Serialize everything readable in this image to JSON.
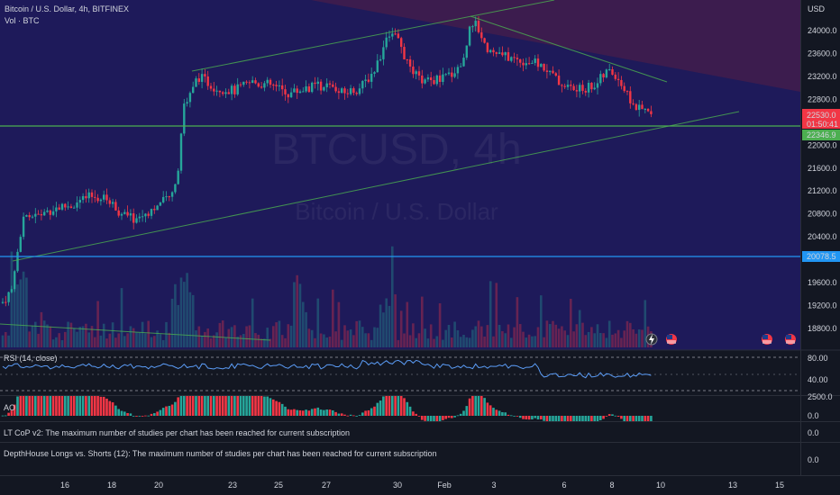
{
  "header": {
    "symbol_line": "Bitcoin / U.S. Dollar, 4h, BITFINEX",
    "vol_line": "Vol · BTC"
  },
  "watermark": {
    "ticker": "BTCUSD, 4h",
    "name": "Bitcoin / U.S. Dollar"
  },
  "price_axis": {
    "currency": "USD",
    "ticks": [
      "24000.0",
      "23600.0",
      "23200.0",
      "22800.0",
      "22000.0",
      "21600.0",
      "21200.0",
      "20800.0",
      "20400.0",
      "19600.0",
      "19200.0",
      "18800.0"
    ]
  },
  "price_tags": {
    "current_price": "22530.0",
    "countdown": "01:50:41",
    "level_upper": "22346.9",
    "level_lower": "20078.5",
    "current_color": "#f23645",
    "level_upper_color": "#4caf50",
    "level_lower_color": "#2196f3"
  },
  "indicators": {
    "rsi": {
      "label": "RSI (14, close)",
      "ticks": [
        "80.00",
        "40.00"
      ]
    },
    "ao": {
      "label": "AO",
      "ticks": [
        "2500.0",
        "0.0"
      ]
    },
    "lt_cop": {
      "label": "LT CoP v2: The maximum number of studies per chart has been reached for current subscription",
      "tick": "0.0"
    },
    "depthhouse": {
      "label": "DepthHouse Longs vs. Shorts (12): The maximum number of studies per chart has been reached for current subscription",
      "tick": "0.0"
    }
  },
  "time_axis": [
    "16",
    "18",
    "20",
    "23",
    "25",
    "27",
    "30",
    "Feb",
    "3",
    "6",
    "8",
    "10",
    "13",
    "15"
  ],
  "chart_data": {
    "type": "candlestick",
    "symbol": "BTCUSD",
    "interval": "4h",
    "exchange": "BITFINEX",
    "ylim": [
      18600,
      24400
    ],
    "levels": [
      22346.9,
      20078.5
    ],
    "last_price": 22530.0,
    "colors": {
      "up": "#26a69a",
      "down": "#f23645"
    },
    "path": [
      [
        0,
        19200
      ],
      [
        14,
        19500
      ],
      [
        20,
        20100
      ],
      [
        26,
        20800
      ],
      [
        40,
        20750
      ],
      [
        60,
        20900
      ],
      [
        80,
        20950
      ],
      [
        100,
        21100
      ],
      [
        120,
        21050
      ],
      [
        135,
        20800
      ],
      [
        150,
        20700
      ],
      [
        170,
        20900
      ],
      [
        190,
        21100
      ],
      [
        197,
        21500
      ],
      [
        203,
        22600
      ],
      [
        210,
        22900
      ],
      [
        220,
        23200
      ],
      [
        240,
        23000
      ],
      [
        260,
        22950
      ],
      [
        280,
        23100
      ],
      [
        300,
        23050
      ],
      [
        320,
        22900
      ],
      [
        340,
        23000
      ],
      [
        360,
        23050
      ],
      [
        380,
        22900
      ],
      [
        400,
        23000
      ],
      [
        415,
        23300
      ],
      [
        425,
        23700
      ],
      [
        435,
        24000
      ],
      [
        445,
        23700
      ],
      [
        455,
        23300
      ],
      [
        470,
        23100
      ],
      [
        490,
        23150
      ],
      [
        505,
        23300
      ],
      [
        515,
        23500
      ],
      [
        522,
        24200
      ],
      [
        530,
        24050
      ],
      [
        540,
        23700
      ],
      [
        550,
        23600
      ],
      [
        570,
        23500
      ],
      [
        590,
        23450
      ],
      [
        605,
        23350
      ],
      [
        620,
        23100
      ],
      [
        640,
        22950
      ],
      [
        660,
        23050
      ],
      [
        675,
        23300
      ],
      [
        685,
        23200
      ],
      [
        695,
        22900
      ],
      [
        705,
        22650
      ],
      [
        715,
        22600
      ],
      [
        724,
        22530
      ]
    ]
  }
}
